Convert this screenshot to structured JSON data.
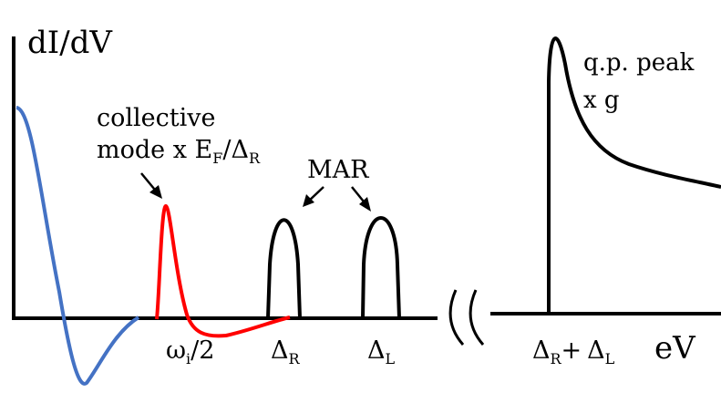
{
  "diagram": {
    "y_axis_label": "dI/dV",
    "x_axis_label": "eV",
    "annotations": {
      "collective_line1": "collective",
      "collective_line2": "mode x E",
      "collective_sub_f": "F",
      "collective_slash": "/Δ",
      "collective_sub_r": "R",
      "mar": "MAR",
      "qp_line1": "q.p. peak",
      "qp_line2": "x g"
    },
    "ticks": {
      "omega_main": "ω",
      "omega_sub": "i",
      "omega_rest": "/2",
      "delta": "Δ",
      "sub_r": "R",
      "sub_l": "L",
      "plus": "+"
    },
    "colors": {
      "axis": "#000000",
      "blue_curve": "#4472c4",
      "red_curve": "#ff0000",
      "mar_peaks": "#000000",
      "qp_peak": "#000000"
    }
  }
}
